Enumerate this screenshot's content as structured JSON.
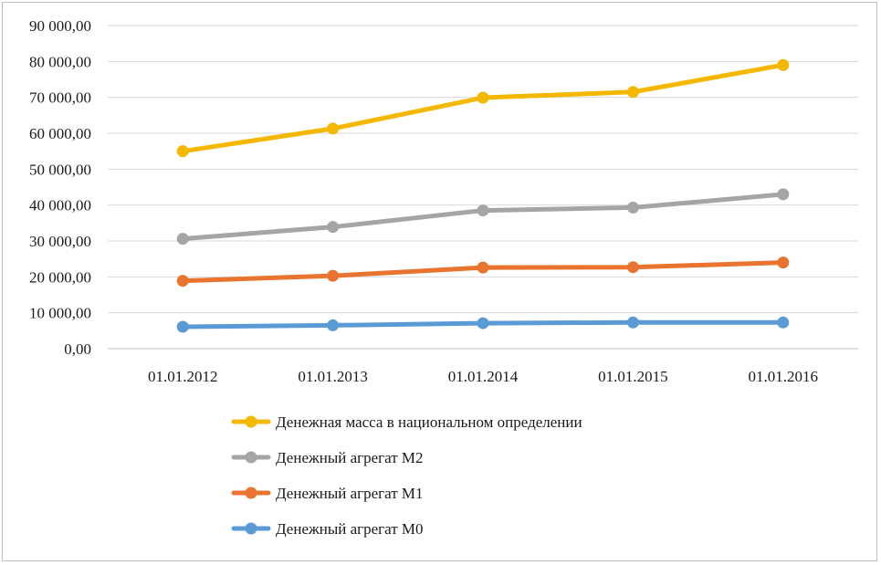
{
  "chart_data": {
    "type": "line",
    "categories": [
      "01.01.2012",
      "01.01.2013",
      "01.01.2014",
      "01.01.2015",
      "01.01.2016"
    ],
    "y_ticks": [
      "0,00",
      "10 000,00",
      "20 000,00",
      "30 000,00",
      "40 000,00",
      "50 000,00",
      "60 000,00",
      "70 000,00",
      "80 000,00",
      "90 000,00"
    ],
    "ylim": [
      0,
      90000
    ],
    "grid": true,
    "legend_position": "bottom",
    "series": [
      {
        "name": "Денежная масса в национальном определении",
        "color": "#f5b800",
        "values": [
          55000,
          61300,
          69900,
          71500,
          79000
        ]
      },
      {
        "name": "Денежный агрегат М2",
        "color": "#a5a5a5",
        "values": [
          30600,
          33900,
          38500,
          39300,
          43000
        ]
      },
      {
        "name": "Денежный агрегат М1",
        "color": "#e8742f",
        "values": [
          18900,
          20300,
          22600,
          22700,
          24000
        ]
      },
      {
        "name": "Денежный агрегат М0",
        "color": "#5b9bd5",
        "values": [
          6100,
          6500,
          7100,
          7300,
          7300
        ]
      }
    ]
  }
}
